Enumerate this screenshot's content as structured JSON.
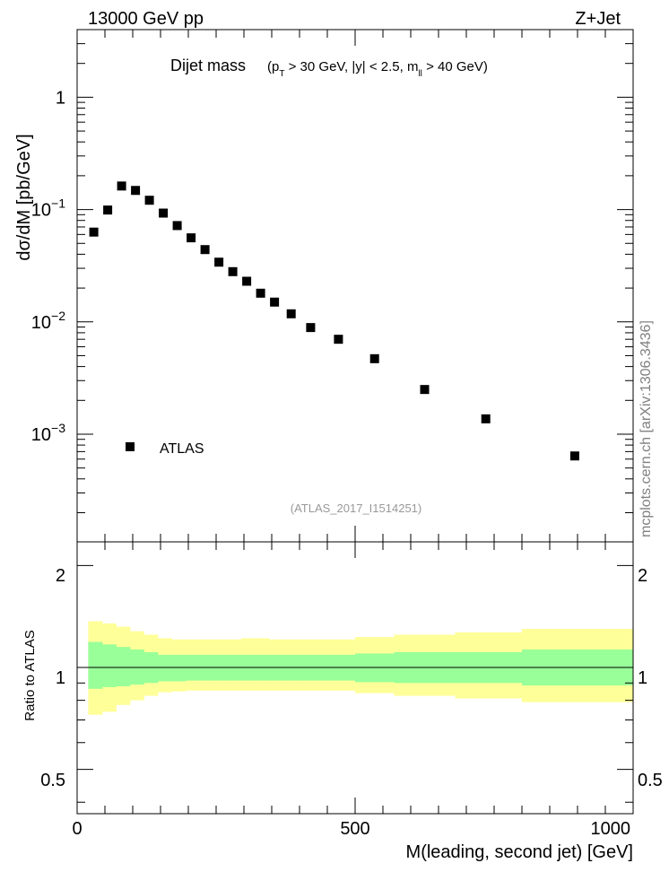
{
  "header": {
    "left": "13000 GeV pp",
    "right": "Z+Jet"
  },
  "title": {
    "main": "Dijet mass",
    "cuts_open": "(p",
    "cuts_sub_T": "T",
    "cuts_mid": " > 30 GeV, |y| < 2.5, m",
    "cuts_sub_ll": "ll",
    "cuts_close": " > 40 GeV)"
  },
  "watermark": "mcplots.cern.ch [arXiv:1306.3436]",
  "analysis_label": "(ATLAS_2017_I1514251)",
  "legend": {
    "label": "ATLAS"
  },
  "top_axis": {
    "ylabel": "dσ/dM [pb/GeV]",
    "tick_labels": [
      {
        "value": 1,
        "base": "1",
        "exp": ""
      },
      {
        "value": 0.1,
        "base": "10",
        "exp": "−1"
      },
      {
        "value": 0.01,
        "base": "10",
        "exp": "−2"
      },
      {
        "value": 0.001,
        "base": "10",
        "exp": "−3"
      }
    ]
  },
  "bottom_axis": {
    "ylabel": "Ratio to ATLAS",
    "xlabel": "M(leading, second jet) [GeV]",
    "y_tick_labels": [
      "2",
      "1",
      "0.5"
    ],
    "x_tick_labels": [
      "0",
      "500",
      "1000"
    ]
  },
  "chart_data": {
    "type": "scatter",
    "title": "Dijet mass (pT > 30 GeV, |y| < 2.5, mll > 40 GeV)",
    "xlabel": "M(leading, second jet) [GeV]",
    "ylabel": "dσ/dM [pb/GeV]",
    "xlim": [
      0,
      1000
    ],
    "ylim": [
      0.00011,
      4.0
    ],
    "yscale": "log",
    "series": [
      {
        "name": "ATLAS",
        "marker": "square",
        "x": [
          30,
          55,
          80,
          105,
          130,
          155,
          180,
          205,
          230,
          255,
          280,
          305,
          330,
          355,
          385,
          420,
          470,
          535,
          625,
          735,
          895
        ],
        "y": [
          0.063,
          0.099,
          0.162,
          0.148,
          0.121,
          0.093,
          0.072,
          0.056,
          0.044,
          0.034,
          0.028,
          0.023,
          0.018,
          0.015,
          0.0118,
          0.0089,
          0.007,
          0.0047,
          0.0025,
          0.00137,
          0.00064
        ]
      }
    ],
    "ratio_panel": {
      "ylabel": "Ratio to ATLAS",
      "ylim": [
        0.37,
        2.35
      ],
      "yscale": "log",
      "reference_line": 1.0,
      "bin_edges": [
        20,
        45,
        70,
        95,
        120,
        145,
        170,
        195,
        220,
        245,
        270,
        295,
        320,
        345,
        370,
        400,
        440,
        500,
        570,
        680,
        800,
        1000
      ],
      "inner_band": {
        "color": "#99ff99",
        "lo": [
          0.865,
          0.875,
          0.88,
          0.89,
          0.9,
          0.91,
          0.91,
          0.915,
          0.915,
          0.915,
          0.915,
          0.915,
          0.915,
          0.915,
          0.915,
          0.915,
          0.915,
          0.905,
          0.9,
          0.9,
          0.885
        ],
        "hi": [
          1.19,
          1.17,
          1.15,
          1.13,
          1.11,
          1.09,
          1.09,
          1.09,
          1.09,
          1.09,
          1.09,
          1.09,
          1.09,
          1.09,
          1.09,
          1.09,
          1.09,
          1.1,
          1.11,
          1.11,
          1.13
        ]
      },
      "outer_band": {
        "color": "#ffff99",
        "lo": [
          0.725,
          0.74,
          0.775,
          0.8,
          0.825,
          0.845,
          0.85,
          0.855,
          0.855,
          0.855,
          0.855,
          0.855,
          0.855,
          0.855,
          0.855,
          0.855,
          0.855,
          0.84,
          0.825,
          0.81,
          0.79
        ],
        "hi": [
          1.37,
          1.35,
          1.32,
          1.28,
          1.25,
          1.22,
          1.21,
          1.21,
          1.21,
          1.21,
          1.21,
          1.22,
          1.22,
          1.21,
          1.21,
          1.21,
          1.21,
          1.23,
          1.25,
          1.27,
          1.3
        ]
      }
    }
  }
}
